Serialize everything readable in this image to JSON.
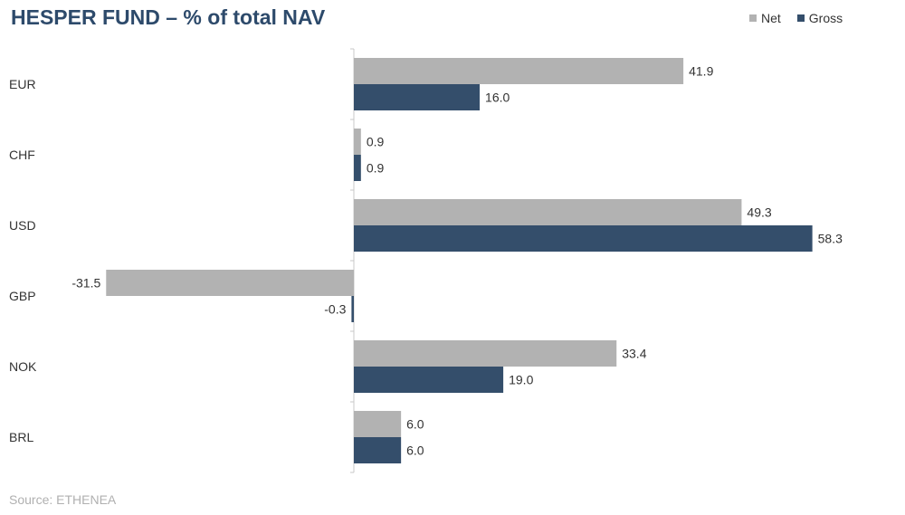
{
  "title": "HESPER FUND – % of total NAV",
  "source": "Source: ETHENEA",
  "colors": {
    "net": "#b2b2b2",
    "gross": "#344e6b",
    "title": "#2d4a6b"
  },
  "chart_data": {
    "type": "bar",
    "orientation": "horizontal",
    "title": "HESPER FUND – % of total NAV",
    "categories": [
      "EUR",
      "CHF",
      "USD",
      "GBP",
      "NOK",
      "BRL"
    ],
    "series": [
      {
        "name": "Net",
        "color": "#b2b2b2",
        "values": [
          41.9,
          0.9,
          49.3,
          -31.5,
          33.4,
          6.0
        ]
      },
      {
        "name": "Gross",
        "color": "#344e6b",
        "values": [
          16.0,
          0.9,
          58.3,
          -0.3,
          19.0,
          6.0
        ]
      }
    ],
    "value_labels": [
      [
        "41.9",
        "0.9",
        "49.3",
        "-31.5",
        "33.4",
        "6.0"
      ],
      [
        "16.0",
        "0.9",
        "58.3",
        "-0.3",
        "19.0",
        "6.0"
      ]
    ],
    "legend_position": "top-right",
    "grid": false
  }
}
